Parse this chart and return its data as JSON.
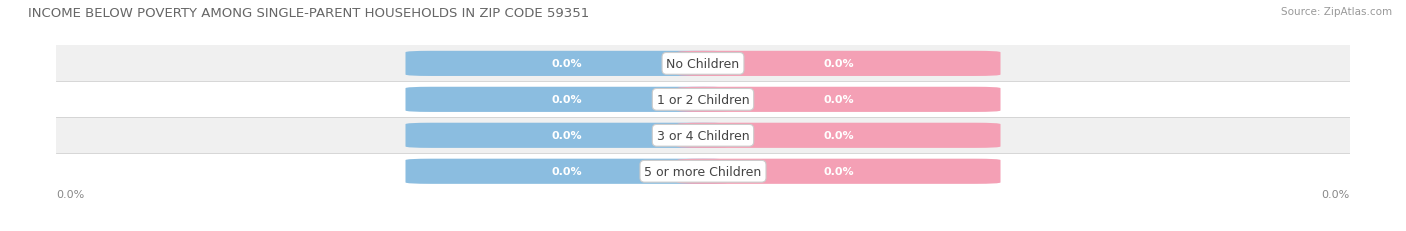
{
  "title": "INCOME BELOW POVERTY AMONG SINGLE-PARENT HOUSEHOLDS IN ZIP CODE 59351",
  "source": "Source: ZipAtlas.com",
  "categories": [
    "No Children",
    "1 or 2 Children",
    "3 or 4 Children",
    "5 or more Children"
  ],
  "father_values": [
    0.0,
    0.0,
    0.0,
    0.0
  ],
  "mother_values": [
    0.0,
    0.0,
    0.0,
    0.0
  ],
  "father_color": "#8bbde0",
  "mother_color": "#f4a0b5",
  "row_bg_colors": [
    "#f0f0f0",
    "#ffffff",
    "#f0f0f0",
    "#ffffff"
  ],
  "title_fontsize": 9.5,
  "cat_fontsize": 9,
  "val_fontsize": 8,
  "source_fontsize": 7.5,
  "legend_fontsize": 8.5,
  "axis_tick_fontsize": 8,
  "axis_label_left": "0.0%",
  "axis_label_right": "0.0%",
  "background_color": "#ffffff",
  "separator_color": "#d0d0d0",
  "title_color": "#666666",
  "source_color": "#999999",
  "axis_tick_color": "#888888",
  "cat_text_color": "#444444",
  "val_text_color": "#ffffff"
}
